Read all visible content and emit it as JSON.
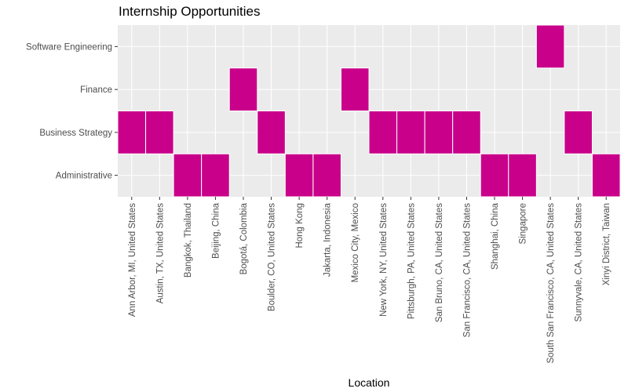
{
  "chart_data": {
    "type": "heatmap",
    "title": "Internship Opportunities",
    "xlabel": "Location",
    "ylabel": "",
    "fill_color": "#C8008A",
    "panel_color": "#EBEBEB",
    "grid": true,
    "x": [
      "Ann Arbor, MI, United States",
      "Austin, TX, United States",
      "Bangkok, Thailand",
      "Beijing, China",
      "Bogotá, Colombia",
      "Boulder, CO, United States",
      "Hong Kong",
      "Jakarta, Indonesia",
      "Mexico City, Mexico",
      "New York, NY, United States",
      "Pittsburgh, PA, United States",
      "San Bruno, CA, United States",
      "San Francisco, CA, United States",
      "Shanghai, China",
      "Singapore",
      "South San Francisco, CA, United States",
      "Sunnyvale, CA, United States",
      "Xinyi District, Taiwan"
    ],
    "y": [
      "Administrative",
      "Business Strategy",
      "Finance",
      "Software Engineering"
    ],
    "cells": [
      {
        "x": "Ann Arbor, MI, United States",
        "y": "Business Strategy"
      },
      {
        "x": "Austin, TX, United States",
        "y": "Business Strategy"
      },
      {
        "x": "Bangkok, Thailand",
        "y": "Administrative"
      },
      {
        "x": "Beijing, China",
        "y": "Administrative"
      },
      {
        "x": "Bogotá, Colombia",
        "y": "Finance"
      },
      {
        "x": "Boulder, CO, United States",
        "y": "Business Strategy"
      },
      {
        "x": "Hong Kong",
        "y": "Administrative"
      },
      {
        "x": "Jakarta, Indonesia",
        "y": "Administrative"
      },
      {
        "x": "Mexico City, Mexico",
        "y": "Finance"
      },
      {
        "x": "New York, NY, United States",
        "y": "Business Strategy"
      },
      {
        "x": "Pittsburgh, PA, United States",
        "y": "Business Strategy"
      },
      {
        "x": "San Bruno, CA, United States",
        "y": "Business Strategy"
      },
      {
        "x": "San Francisco, CA, United States",
        "y": "Business Strategy"
      },
      {
        "x": "Shanghai, China",
        "y": "Administrative"
      },
      {
        "x": "Singapore",
        "y": "Administrative"
      },
      {
        "x": "South San Francisco, CA, United States",
        "y": "Software Engineering"
      },
      {
        "x": "Sunnyvale, CA, United States",
        "y": "Business Strategy"
      },
      {
        "x": "Xinyi District, Taiwan",
        "y": "Administrative"
      }
    ]
  }
}
